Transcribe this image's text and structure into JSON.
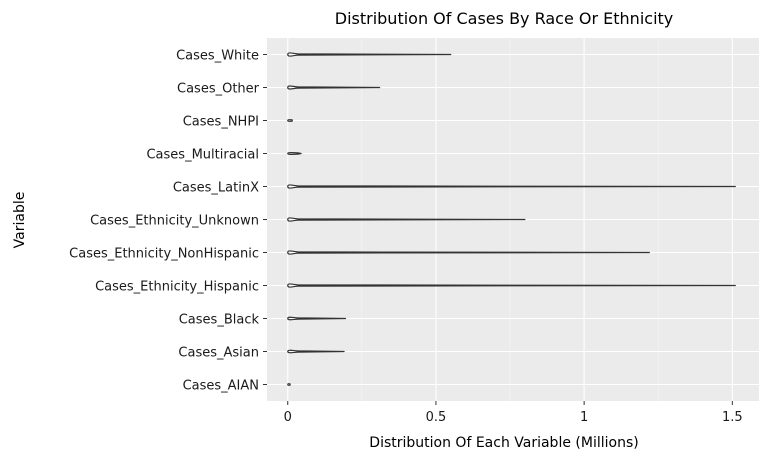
{
  "chart_data": {
    "type": "violin",
    "title": "Distribution Of Cases By Race Or Ethnicity",
    "xlabel": "Distribution Of Each Variable (Millions)",
    "ylabel": "Variable",
    "xlim": [
      -0.07,
      1.59
    ],
    "x_ticks": [
      0,
      0.5,
      1,
      1.5
    ],
    "x_tick_labels": [
      "0",
      "0.5",
      "1",
      "1.5"
    ],
    "grid": true,
    "categories": [
      "Cases_White",
      "Cases_Other",
      "Cases_NHPI",
      "Cases_Multiracial",
      "Cases_LatinX",
      "Cases_Ethnicity_Unknown",
      "Cases_Ethnicity_NonHispanic",
      "Cases_Ethnicity_Hispanic",
      "Cases_Black",
      "Cases_Asian",
      "Cases_AIAN"
    ],
    "ranges": [
      {
        "min": 0,
        "max": 0.55
      },
      {
        "min": 0,
        "max": 0.31
      },
      {
        "min": 0,
        "max": 0.015
      },
      {
        "min": 0,
        "max": 0.045
      },
      {
        "min": 0,
        "max": 1.51
      },
      {
        "min": 0,
        "max": 0.8
      },
      {
        "min": 0,
        "max": 1.22
      },
      {
        "min": 0,
        "max": 1.51
      },
      {
        "min": 0,
        "max": 0.195
      },
      {
        "min": 0,
        "max": 0.19
      },
      {
        "min": 0,
        "max": 0.008
      }
    ]
  }
}
